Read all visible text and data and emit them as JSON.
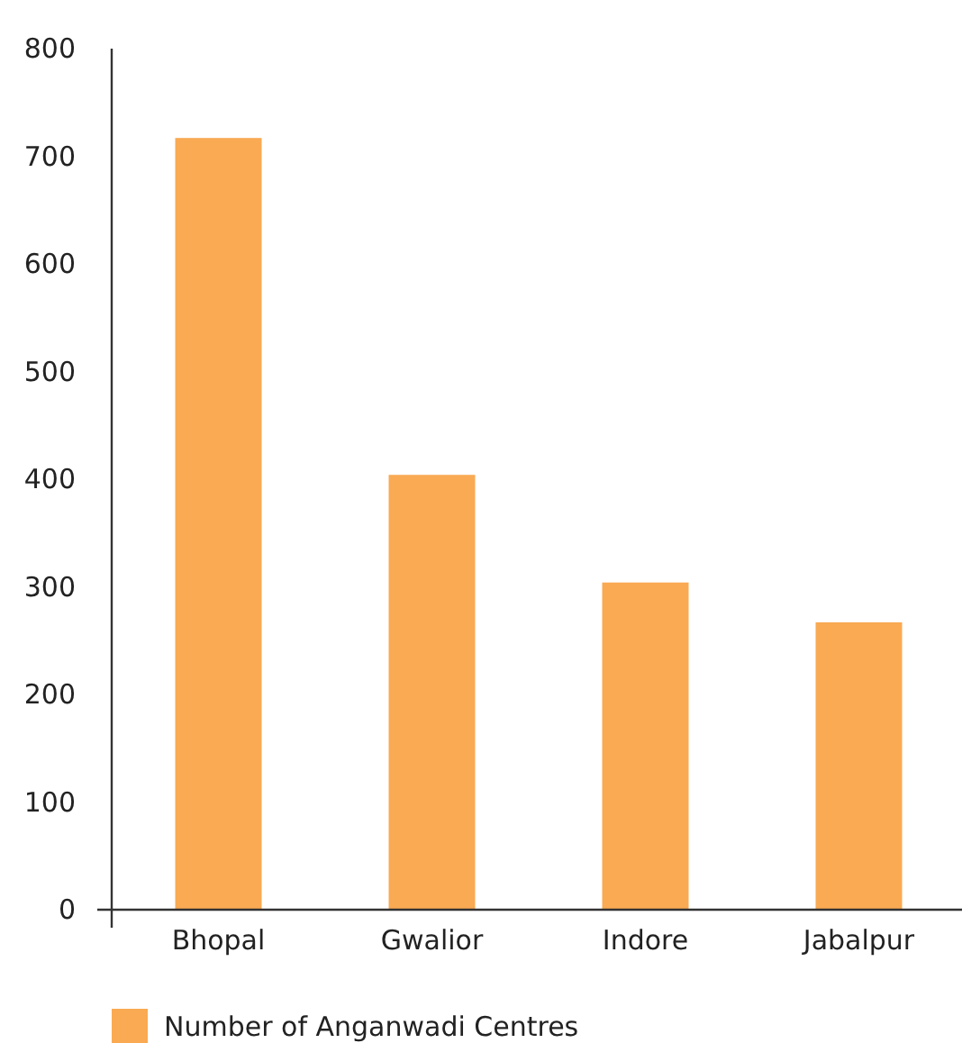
{
  "chart_data": {
    "type": "bar",
    "categories": [
      "Bhopal",
      "Gwalior",
      "Indore",
      "Jabalpur"
    ],
    "series": [
      {
        "name": "Number of Anganwadi Centres",
        "color": "#f9aa53",
        "values": [
          717,
          404,
          304,
          267
        ]
      }
    ],
    "ylim": [
      0,
      800
    ],
    "yticks": [
      0,
      100,
      200,
      300,
      400,
      500,
      600,
      700,
      800
    ],
    "grid": false,
    "legend": "bottom"
  }
}
